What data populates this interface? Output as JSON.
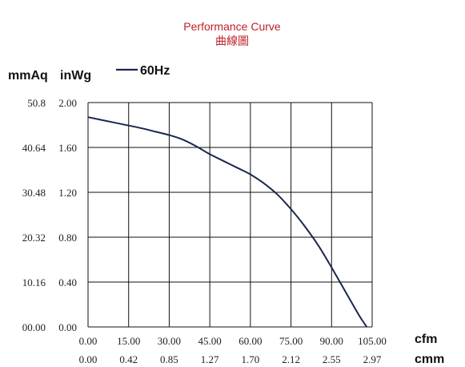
{
  "chart_data": {
    "type": "line",
    "title": "Performance Curve",
    "subtitle": "曲線圖",
    "y_unit_labels": [
      "mmAq",
      "inWg"
    ],
    "x_unit_labels": [
      "cfm",
      "cmm"
    ],
    "legend": [
      {
        "name": "60Hz",
        "color": "#1b2650"
      }
    ],
    "grid": true,
    "xlim": [
      0,
      105
    ],
    "ylim": [
      0,
      2.0
    ],
    "x_ticks": [
      0,
      15,
      30,
      45,
      60,
      75,
      90,
      105
    ],
    "x_tick_labels": [
      "0.00",
      "15.00",
      "30.00",
      "45.00",
      "60.00",
      "75.00",
      "90.00",
      "105.00"
    ],
    "x2_tick_labels": [
      "0.00",
      "0.42",
      "0.85",
      "1.27",
      "1.70",
      "2.12",
      "2.55",
      "2.97"
    ],
    "y_ticks": [
      0,
      0.4,
      0.8,
      1.2,
      1.6,
      2.0
    ],
    "y_tick_labels_inwg": [
      "0.00",
      "0.40",
      "0.80",
      "1.20",
      "1.60",
      "2.00"
    ],
    "y_tick_labels_mmaq": [
      "00.00",
      "10.16",
      "20.32",
      "30.48",
      "40.64",
      "50.8"
    ],
    "series": [
      {
        "name": "60Hz",
        "color": "#1b2650",
        "x": [
          0,
          10,
          20,
          25,
          30,
          35,
          40,
          45,
          50,
          55,
          60,
          65,
          70,
          75,
          80,
          85,
          90,
          95,
          100,
          103
        ],
        "y": [
          1.87,
          1.82,
          1.77,
          1.74,
          1.71,
          1.67,
          1.61,
          1.54,
          1.48,
          1.42,
          1.36,
          1.28,
          1.18,
          1.05,
          0.9,
          0.73,
          0.53,
          0.32,
          0.11,
          0.0
        ]
      }
    ]
  }
}
